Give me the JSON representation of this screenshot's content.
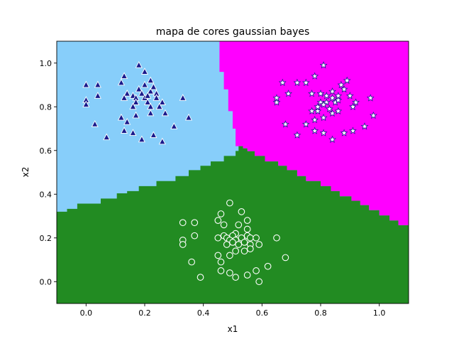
{
  "chart_data": {
    "type": "scatter",
    "title": "mapa de cores gaussian bayes",
    "xlabel": "x1",
    "ylabel": "x2",
    "xlim": [
      -0.1,
      1.1
    ],
    "ylim": [
      -0.1,
      1.1
    ],
    "xticks": [
      0.0,
      0.2,
      0.4,
      0.6,
      0.8,
      1.0
    ],
    "yticks": [
      0.0,
      0.2,
      0.4,
      0.6,
      0.8,
      1.0
    ],
    "xtick_labels": [
      "0.0",
      "0.2",
      "0.4",
      "0.6",
      "0.8",
      "1.0"
    ],
    "ytick_labels": [
      "0.0",
      "0.2",
      "0.4",
      "0.6",
      "0.8",
      "1.0"
    ],
    "grid": false,
    "regions": {
      "colors": {
        "lightblue": "#87CEFA",
        "magenta": "#FF00FF",
        "green": "#228B22"
      },
      "bottom_boundary": [
        [
          -0.1,
          0.32
        ],
        [
          -0.065,
          0.32
        ],
        [
          -0.065,
          0.333
        ],
        [
          -0.03,
          0.333
        ],
        [
          -0.03,
          0.357
        ],
        [
          0.05,
          0.357
        ],
        [
          0.05,
          0.38
        ],
        [
          0.105,
          0.38
        ],
        [
          0.105,
          0.404
        ],
        [
          0.14,
          0.404
        ],
        [
          0.14,
          0.414
        ],
        [
          0.18,
          0.414
        ],
        [
          0.18,
          0.437
        ],
        [
          0.24,
          0.437
        ],
        [
          0.24,
          0.46
        ],
        [
          0.305,
          0.46
        ],
        [
          0.305,
          0.483
        ],
        [
          0.35,
          0.483
        ],
        [
          0.35,
          0.51
        ],
        [
          0.39,
          0.51
        ],
        [
          0.39,
          0.53
        ],
        [
          0.425,
          0.53
        ],
        [
          0.425,
          0.55
        ],
        [
          0.47,
          0.55
        ],
        [
          0.47,
          0.575
        ],
        [
          0.51,
          0.575
        ],
        [
          0.51,
          0.598
        ],
        [
          0.52,
          0.598
        ],
        [
          0.52,
          0.62
        ],
        [
          0.535,
          0.62
        ],
        [
          0.535,
          0.61
        ],
        [
          0.55,
          0.61
        ],
        [
          0.55,
          0.597
        ],
        [
          0.575,
          0.597
        ],
        [
          0.575,
          0.575
        ],
        [
          0.61,
          0.575
        ],
        [
          0.61,
          0.55
        ],
        [
          0.655,
          0.55
        ],
        [
          0.655,
          0.53
        ],
        [
          0.685,
          0.53
        ],
        [
          0.685,
          0.51
        ],
        [
          0.72,
          0.51
        ],
        [
          0.72,
          0.483
        ],
        [
          0.75,
          0.483
        ],
        [
          0.75,
          0.46
        ],
        [
          0.8,
          0.46
        ],
        [
          0.8,
          0.437
        ],
        [
          0.835,
          0.437
        ],
        [
          0.835,
          0.414
        ],
        [
          0.865,
          0.414
        ],
        [
          0.865,
          0.39
        ],
        [
          0.905,
          0.39
        ],
        [
          0.905,
          0.37
        ],
        [
          0.935,
          0.37
        ],
        [
          0.935,
          0.35
        ],
        [
          0.965,
          0.35
        ],
        [
          0.965,
          0.327
        ],
        [
          1.0,
          0.327
        ],
        [
          1.0,
          0.303
        ],
        [
          1.035,
          0.303
        ],
        [
          1.035,
          0.28
        ],
        [
          1.065,
          0.28
        ],
        [
          1.065,
          0.258
        ],
        [
          1.1,
          0.258
        ]
      ],
      "vertical_boundary": [
        [
          0.455,
          1.1
        ],
        [
          0.455,
          0.96
        ],
        [
          0.47,
          0.96
        ],
        [
          0.47,
          0.88
        ],
        [
          0.485,
          0.88
        ],
        [
          0.485,
          0.78
        ],
        [
          0.5,
          0.78
        ],
        [
          0.5,
          0.7
        ],
        [
          0.51,
          0.7
        ],
        [
          0.51,
          0.62
        ],
        [
          0.52,
          0.62
        ],
        [
          0.52,
          0.598
        ]
      ]
    },
    "series": [
      {
        "marker": "triangle",
        "color": "#1a1a8c",
        "points": [
          [
            0.0,
            0.9
          ],
          [
            0.0,
            0.83
          ],
          [
            0.0,
            0.81
          ],
          [
            0.04,
            0.9
          ],
          [
            0.04,
            0.85
          ],
          [
            0.03,
            0.72
          ],
          [
            0.07,
            0.66
          ],
          [
            0.12,
            0.91
          ],
          [
            0.13,
            0.94
          ],
          [
            0.14,
            0.86
          ],
          [
            0.13,
            0.84
          ],
          [
            0.16,
            0.85
          ],
          [
            0.17,
            0.84
          ],
          [
            0.17,
            0.82
          ],
          [
            0.16,
            0.8
          ],
          [
            0.18,
            0.88
          ],
          [
            0.18,
            0.99
          ],
          [
            0.2,
            0.96
          ],
          [
            0.22,
            0.92
          ],
          [
            0.2,
            0.9
          ],
          [
            0.19,
            0.86
          ],
          [
            0.2,
            0.84
          ],
          [
            0.21,
            0.82
          ],
          [
            0.22,
            0.87
          ],
          [
            0.23,
            0.89
          ],
          [
            0.24,
            0.86
          ],
          [
            0.21,
            0.85
          ],
          [
            0.22,
            0.8
          ],
          [
            0.22,
            0.77
          ],
          [
            0.26,
            0.82
          ],
          [
            0.27,
            0.77
          ],
          [
            0.12,
            0.75
          ],
          [
            0.14,
            0.73
          ],
          [
            0.17,
            0.76
          ],
          [
            0.13,
            0.69
          ],
          [
            0.16,
            0.68
          ],
          [
            0.19,
            0.65
          ],
          [
            0.23,
            0.67
          ],
          [
            0.26,
            0.64
          ],
          [
            0.3,
            0.71
          ],
          [
            0.33,
            0.84
          ],
          [
            0.35,
            0.75
          ],
          [
            0.25,
            0.8
          ],
          [
            0.24,
            0.84
          ]
        ]
      },
      {
        "marker": "star",
        "color": "#ffffff",
        "points": [
          [
            0.81,
            0.99
          ],
          [
            0.78,
            0.94
          ],
          [
            0.72,
            0.91
          ],
          [
            0.75,
            0.91
          ],
          [
            0.77,
            0.86
          ],
          [
            0.67,
            0.91
          ],
          [
            0.69,
            0.86
          ],
          [
            0.65,
            0.84
          ],
          [
            0.65,
            0.82
          ],
          [
            0.8,
            0.86
          ],
          [
            0.82,
            0.85
          ],
          [
            0.84,
            0.87
          ],
          [
            0.85,
            0.82
          ],
          [
            0.86,
            0.83
          ],
          [
            0.82,
            0.82
          ],
          [
            0.84,
            0.84
          ],
          [
            0.87,
            0.9
          ],
          [
            0.89,
            0.92
          ],
          [
            0.88,
            0.88
          ],
          [
            0.86,
            0.85
          ],
          [
            0.83,
            0.79
          ],
          [
            0.8,
            0.82
          ],
          [
            0.79,
            0.78
          ],
          [
            0.77,
            0.78
          ],
          [
            0.78,
            0.74
          ],
          [
            0.81,
            0.75
          ],
          [
            0.84,
            0.77
          ],
          [
            0.86,
            0.78
          ],
          [
            0.91,
            0.8
          ],
          [
            0.92,
            0.82
          ],
          [
            0.9,
            0.85
          ],
          [
            0.97,
            0.84
          ],
          [
            0.98,
            0.76
          ],
          [
            0.95,
            0.71
          ],
          [
            0.91,
            0.69
          ],
          [
            0.88,
            0.68
          ],
          [
            0.84,
            0.65
          ],
          [
            0.81,
            0.68
          ],
          [
            0.78,
            0.69
          ],
          [
            0.75,
            0.72
          ],
          [
            0.72,
            0.67
          ],
          [
            0.68,
            0.72
          ],
          [
            0.81,
            0.81
          ],
          [
            0.79,
            0.8
          ]
        ]
      },
      {
        "marker": "circle",
        "color": "#228B22",
        "points": [
          [
            0.49,
            0.36
          ],
          [
            0.53,
            0.32
          ],
          [
            0.46,
            0.31
          ],
          [
            0.45,
            0.28
          ],
          [
            0.55,
            0.28
          ],
          [
            0.52,
            0.26
          ],
          [
            0.55,
            0.24
          ],
          [
            0.47,
            0.26
          ],
          [
            0.33,
            0.27
          ],
          [
            0.37,
            0.27
          ],
          [
            0.33,
            0.19
          ],
          [
            0.33,
            0.17
          ],
          [
            0.37,
            0.21
          ],
          [
            0.51,
            0.22
          ],
          [
            0.5,
            0.21
          ],
          [
            0.47,
            0.21
          ],
          [
            0.45,
            0.2
          ],
          [
            0.48,
            0.2
          ],
          [
            0.49,
            0.19
          ],
          [
            0.51,
            0.19
          ],
          [
            0.53,
            0.2
          ],
          [
            0.55,
            0.21
          ],
          [
            0.56,
            0.2
          ],
          [
            0.58,
            0.2
          ],
          [
            0.54,
            0.18
          ],
          [
            0.52,
            0.17
          ],
          [
            0.5,
            0.18
          ],
          [
            0.48,
            0.17
          ],
          [
            0.56,
            0.17
          ],
          [
            0.56,
            0.15
          ],
          [
            0.54,
            0.14
          ],
          [
            0.51,
            0.14
          ],
          [
            0.49,
            0.12
          ],
          [
            0.45,
            0.12
          ],
          [
            0.46,
            0.09
          ],
          [
            0.36,
            0.09
          ],
          [
            0.39,
            0.02
          ],
          [
            0.46,
            0.05
          ],
          [
            0.49,
            0.04
          ],
          [
            0.51,
            0.02
          ],
          [
            0.55,
            0.03
          ],
          [
            0.58,
            0.05
          ],
          [
            0.59,
            0.0
          ],
          [
            0.62,
            0.07
          ],
          [
            0.65,
            0.2
          ],
          [
            0.68,
            0.11
          ],
          [
            0.59,
            0.17
          ]
        ]
      }
    ]
  }
}
